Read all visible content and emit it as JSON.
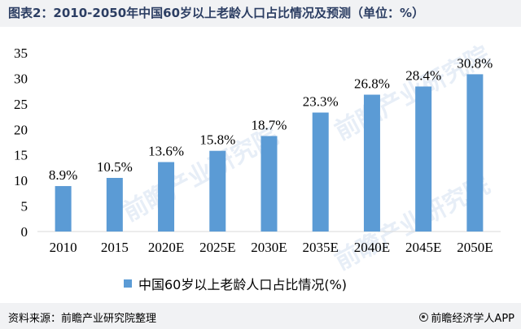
{
  "title": "图表2：2010-2050年中国60岁以上老龄人口占比情况及预测（单位：%）",
  "source": "资料来源：前瞻产业研究院整理",
  "brand": "前瞻经济学人APP",
  "watermark": "前瞻产业研究院",
  "colors": {
    "bar": "#5b9bd5",
    "header_bg": "#f1f2f4",
    "title": "#2c3e63"
  },
  "chart_data": {
    "type": "bar",
    "categories": [
      "2010",
      "2015",
      "2020E",
      "2025E",
      "2030E",
      "2035E",
      "2040E",
      "2045E",
      "2050E"
    ],
    "series": [
      {
        "name": "中国60岁以上老龄人口占比情况(%)",
        "values": [
          8.9,
          10.5,
          13.6,
          15.8,
          18.7,
          23.3,
          26.8,
          28.4,
          30.8
        ]
      }
    ],
    "data_labels": [
      "8.9%",
      "10.5%",
      "13.6%",
      "15.8%",
      "18.7%",
      "23.3%",
      "26.8%",
      "28.4%",
      "30.8%"
    ],
    "ylim": [
      0,
      35
    ],
    "yticks": [
      0,
      5,
      10,
      15,
      20,
      25,
      30,
      35
    ],
    "grid": false,
    "legend_position": "bottom"
  }
}
